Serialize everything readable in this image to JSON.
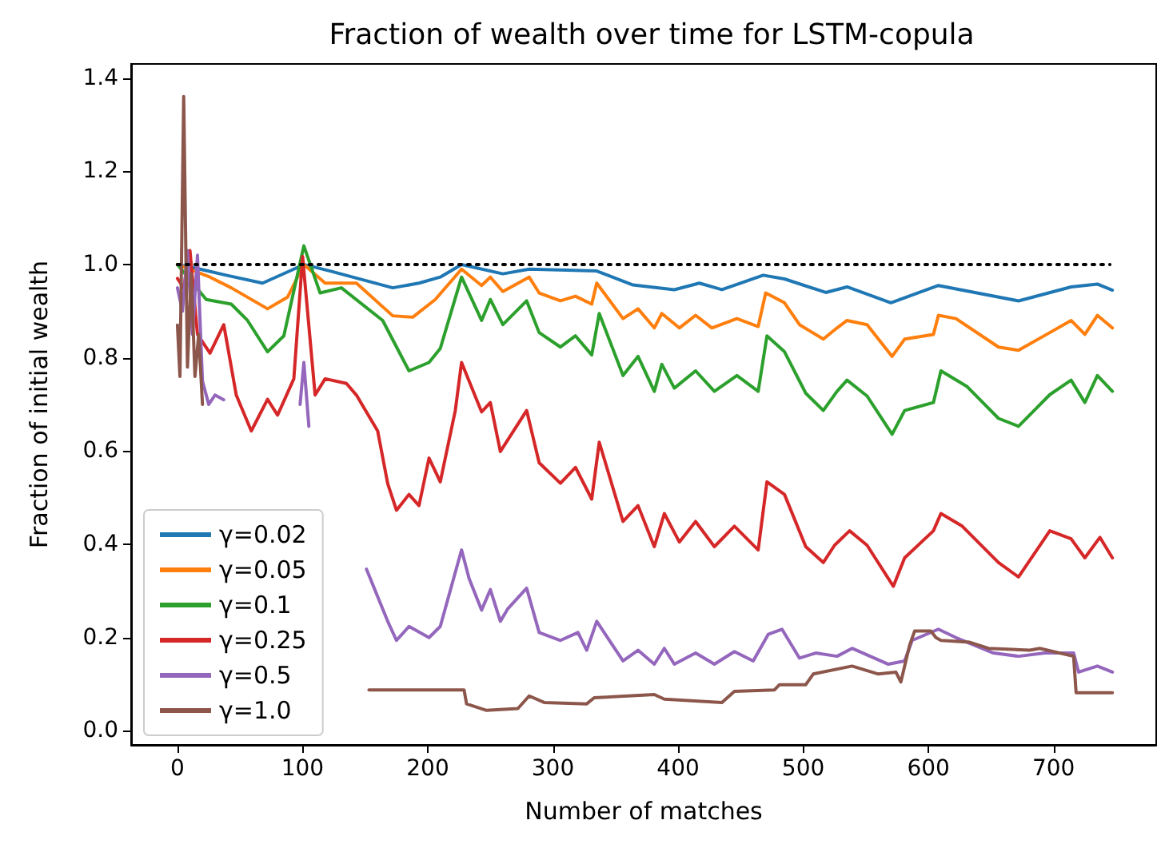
{
  "chart_data": {
    "type": "line",
    "title": "Fraction of wealth over time for LSTM-copula",
    "xlabel": "Number of matches",
    "ylabel": "Fraction of initial wealth",
    "xlim": [
      -37,
      782
    ],
    "ylim": [
      -0.03,
      1.43
    ],
    "xticks": [
      0,
      100,
      200,
      300,
      400,
      500,
      600,
      700
    ],
    "yticks": [
      {
        "value": 0,
        "label": "0.0"
      },
      {
        "value": 0.2,
        "label": "0.2"
      },
      {
        "value": 0.4,
        "label": "0.4"
      },
      {
        "value": 0.6,
        "label": "0.6"
      },
      {
        "value": 0.8,
        "label": "0.8"
      },
      {
        "value": 1,
        "label": "1.0"
      },
      {
        "value": 1.2,
        "label": "1.2"
      },
      {
        "value": 1.4,
        "label": "1.4"
      }
    ],
    "grid": false,
    "legend": "bottom left",
    "marker": "none",
    "series": [
      {
        "name": "γ=0.02",
        "color": "#1f77b4",
        "x": [
          0,
          18,
          39,
          68,
          93,
          101,
          122,
          172,
          193,
          210,
          227,
          260,
          281,
          335,
          364,
          397,
          417,
          435,
          468,
          485,
          518,
          535,
          570,
          608,
          672,
          714,
          735,
          747
        ],
        "values": [
          1.0,
          0.99,
          0.977,
          0.96,
          0.99,
          1.0,
          0.986,
          0.95,
          0.96,
          0.973,
          1.0,
          0.98,
          0.99,
          0.986,
          0.956,
          0.946,
          0.96,
          0.946,
          0.977,
          0.969,
          0.94,
          0.952,
          0.918,
          0.955,
          0.922,
          0.952,
          0.958,
          0.945
        ]
      },
      {
        "name": "γ=0.05",
        "color": "#ff7f0e",
        "x": [
          0,
          26,
          43,
          72,
          88,
          101,
          118,
          143,
          172,
          188,
          206,
          227,
          243,
          250,
          260,
          281,
          289,
          306,
          318,
          331,
          335,
          356,
          368,
          381,
          387,
          401,
          414,
          427,
          447,
          464,
          470,
          485,
          497,
          516,
          527,
          535,
          551,
          571,
          581,
          604,
          608,
          622,
          656,
          672,
          697,
          714,
          725,
          735,
          747
        ],
        "values": [
          1.0,
          0.973,
          0.95,
          0.905,
          0.93,
          1.0,
          0.96,
          0.96,
          0.89,
          0.887,
          0.925,
          0.99,
          0.955,
          0.973,
          0.942,
          0.973,
          0.939,
          0.922,
          0.932,
          0.915,
          0.96,
          0.884,
          0.905,
          0.864,
          0.895,
          0.864,
          0.891,
          0.864,
          0.884,
          0.867,
          0.939,
          0.918,
          0.871,
          0.84,
          0.864,
          0.88,
          0.871,
          0.803,
          0.84,
          0.85,
          0.891,
          0.884,
          0.823,
          0.816,
          0.854,
          0.88,
          0.85,
          0.891,
          0.864
        ]
      },
      {
        "name": "γ=0.1",
        "color": "#2ca02c",
        "x": [
          0,
          23,
          43,
          56,
          72,
          85,
          101,
          114,
          131,
          164,
          185,
          201,
          210,
          227,
          243,
          250,
          260,
          279,
          289,
          306,
          318,
          331,
          337,
          356,
          368,
          381,
          387,
          397,
          414,
          429,
          447,
          464,
          471,
          485,
          502,
          516,
          527,
          535,
          551,
          571,
          581,
          604,
          610,
          631,
          656,
          672,
          697,
          714,
          725,
          735,
          747
        ],
        "values": [
          1.0,
          0.925,
          0.915,
          0.88,
          0.813,
          0.847,
          1.04,
          0.939,
          0.95,
          0.88,
          0.772,
          0.79,
          0.82,
          0.973,
          0.88,
          0.925,
          0.871,
          0.922,
          0.854,
          0.823,
          0.847,
          0.806,
          0.895,
          0.762,
          0.803,
          0.728,
          0.786,
          0.735,
          0.772,
          0.728,
          0.762,
          0.728,
          0.847,
          0.813,
          0.724,
          0.687,
          0.728,
          0.752,
          0.718,
          0.636,
          0.687,
          0.704,
          0.772,
          0.738,
          0.67,
          0.653,
          0.721,
          0.752,
          0.704,
          0.762,
          0.728
        ]
      },
      {
        "name": "γ=0.25",
        "color": "#d62728",
        "x": [
          0,
          5,
          10,
          16,
          26,
          37,
          47,
          59,
          72,
          80,
          93,
          100,
          110,
          118,
          135,
          143,
          160,
          168,
          175,
          185,
          193,
          201,
          210,
          222,
          227,
          243,
          250,
          258,
          279,
          289,
          306,
          318,
          331,
          337,
          356,
          368,
          381,
          389,
          401,
          414,
          429,
          445,
          464,
          471,
          485,
          502,
          516,
          525,
          537,
          551,
          572,
          581,
          604,
          610,
          627,
          656,
          672,
          697,
          714,
          725,
          737,
          747
        ],
        "values": [
          0.97,
          0.95,
          1.03,
          0.85,
          0.81,
          0.871,
          0.72,
          0.643,
          0.711,
          0.677,
          0.755,
          1.017,
          0.72,
          0.755,
          0.745,
          0.72,
          0.643,
          0.53,
          0.473,
          0.507,
          0.483,
          0.585,
          0.534,
          0.687,
          0.79,
          0.684,
          0.704,
          0.599,
          0.687,
          0.575,
          0.531,
          0.565,
          0.497,
          0.619,
          0.449,
          0.483,
          0.395,
          0.466,
          0.405,
          0.449,
          0.395,
          0.439,
          0.388,
          0.534,
          0.507,
          0.395,
          0.361,
          0.398,
          0.429,
          0.398,
          0.31,
          0.371,
          0.429,
          0.466,
          0.439,
          0.361,
          0.33,
          0.429,
          0.412,
          0.371,
          0.415,
          0.371
        ]
      },
      {
        "name": "γ=0.5",
        "color": "#9467bd",
        "x": [
          0,
          4,
          8,
          12,
          16,
          20,
          25,
          30,
          37,
          45,
          98,
          101,
          105,
          110,
          151,
          168,
          175,
          185,
          201,
          210,
          227,
          233,
          243,
          250,
          258,
          264,
          279,
          289,
          306,
          320,
          327,
          335,
          356,
          368,
          381,
          389,
          397,
          414,
          429,
          445,
          460,
          472,
          483,
          497,
          510,
          527,
          539,
          568,
          581,
          587,
          608,
          622,
          652,
          672,
          693,
          716,
          720,
          735,
          747
        ],
        "values": [
          0.95,
          0.9,
          1.03,
          0.85,
          1.02,
          0.75,
          0.7,
          0.72,
          0.71,
          null,
          0.7,
          0.79,
          0.653,
          null,
          0.347,
          0.235,
          0.194,
          0.224,
          0.2,
          0.224,
          0.388,
          0.327,
          0.259,
          0.303,
          0.235,
          0.262,
          0.306,
          0.211,
          0.194,
          0.211,
          0.173,
          0.235,
          0.15,
          0.173,
          0.143,
          0.177,
          0.143,
          0.167,
          0.143,
          0.17,
          0.15,
          0.207,
          0.218,
          0.156,
          0.167,
          0.16,
          0.177,
          0.143,
          0.15,
          0.194,
          0.218,
          0.2,
          0.167,
          0.16,
          0.167,
          0.167,
          0.126,
          0.139,
          0.126
        ]
      },
      {
        "name": "γ=1.0",
        "color": "#8c564b",
        "x": [
          0,
          2,
          5,
          8,
          11,
          14,
          17,
          20,
          24,
          153,
          210,
          229,
          231,
          247,
          272,
          281,
          293,
          327,
          333,
          360,
          381,
          389,
          435,
          445,
          477,
          481,
          502,
          508,
          539,
          560,
          574,
          578,
          585,
          589,
          602,
          606,
          610,
          633,
          648,
          681,
          689,
          716,
          718,
          747
        ],
        "values": [
          0.87,
          0.76,
          1.36,
          0.78,
          0.98,
          0.76,
          0.85,
          0.7,
          null,
          0.088,
          0.088,
          0.088,
          0.058,
          0.044,
          0.048,
          0.075,
          0.061,
          0.058,
          0.071,
          0.075,
          0.078,
          0.068,
          0.061,
          0.085,
          0.088,
          0.099,
          0.099,
          0.122,
          0.139,
          0.122,
          0.126,
          0.105,
          0.184,
          0.214,
          0.214,
          0.2,
          0.194,
          0.19,
          0.177,
          0.173,
          0.177,
          0.16,
          0.082,
          0.082
        ]
      },
      {
        "color": "#000000",
        "line_style": "dotted",
        "x": [
          0,
          745
        ],
        "values": [
          1,
          1
        ]
      }
    ]
  }
}
